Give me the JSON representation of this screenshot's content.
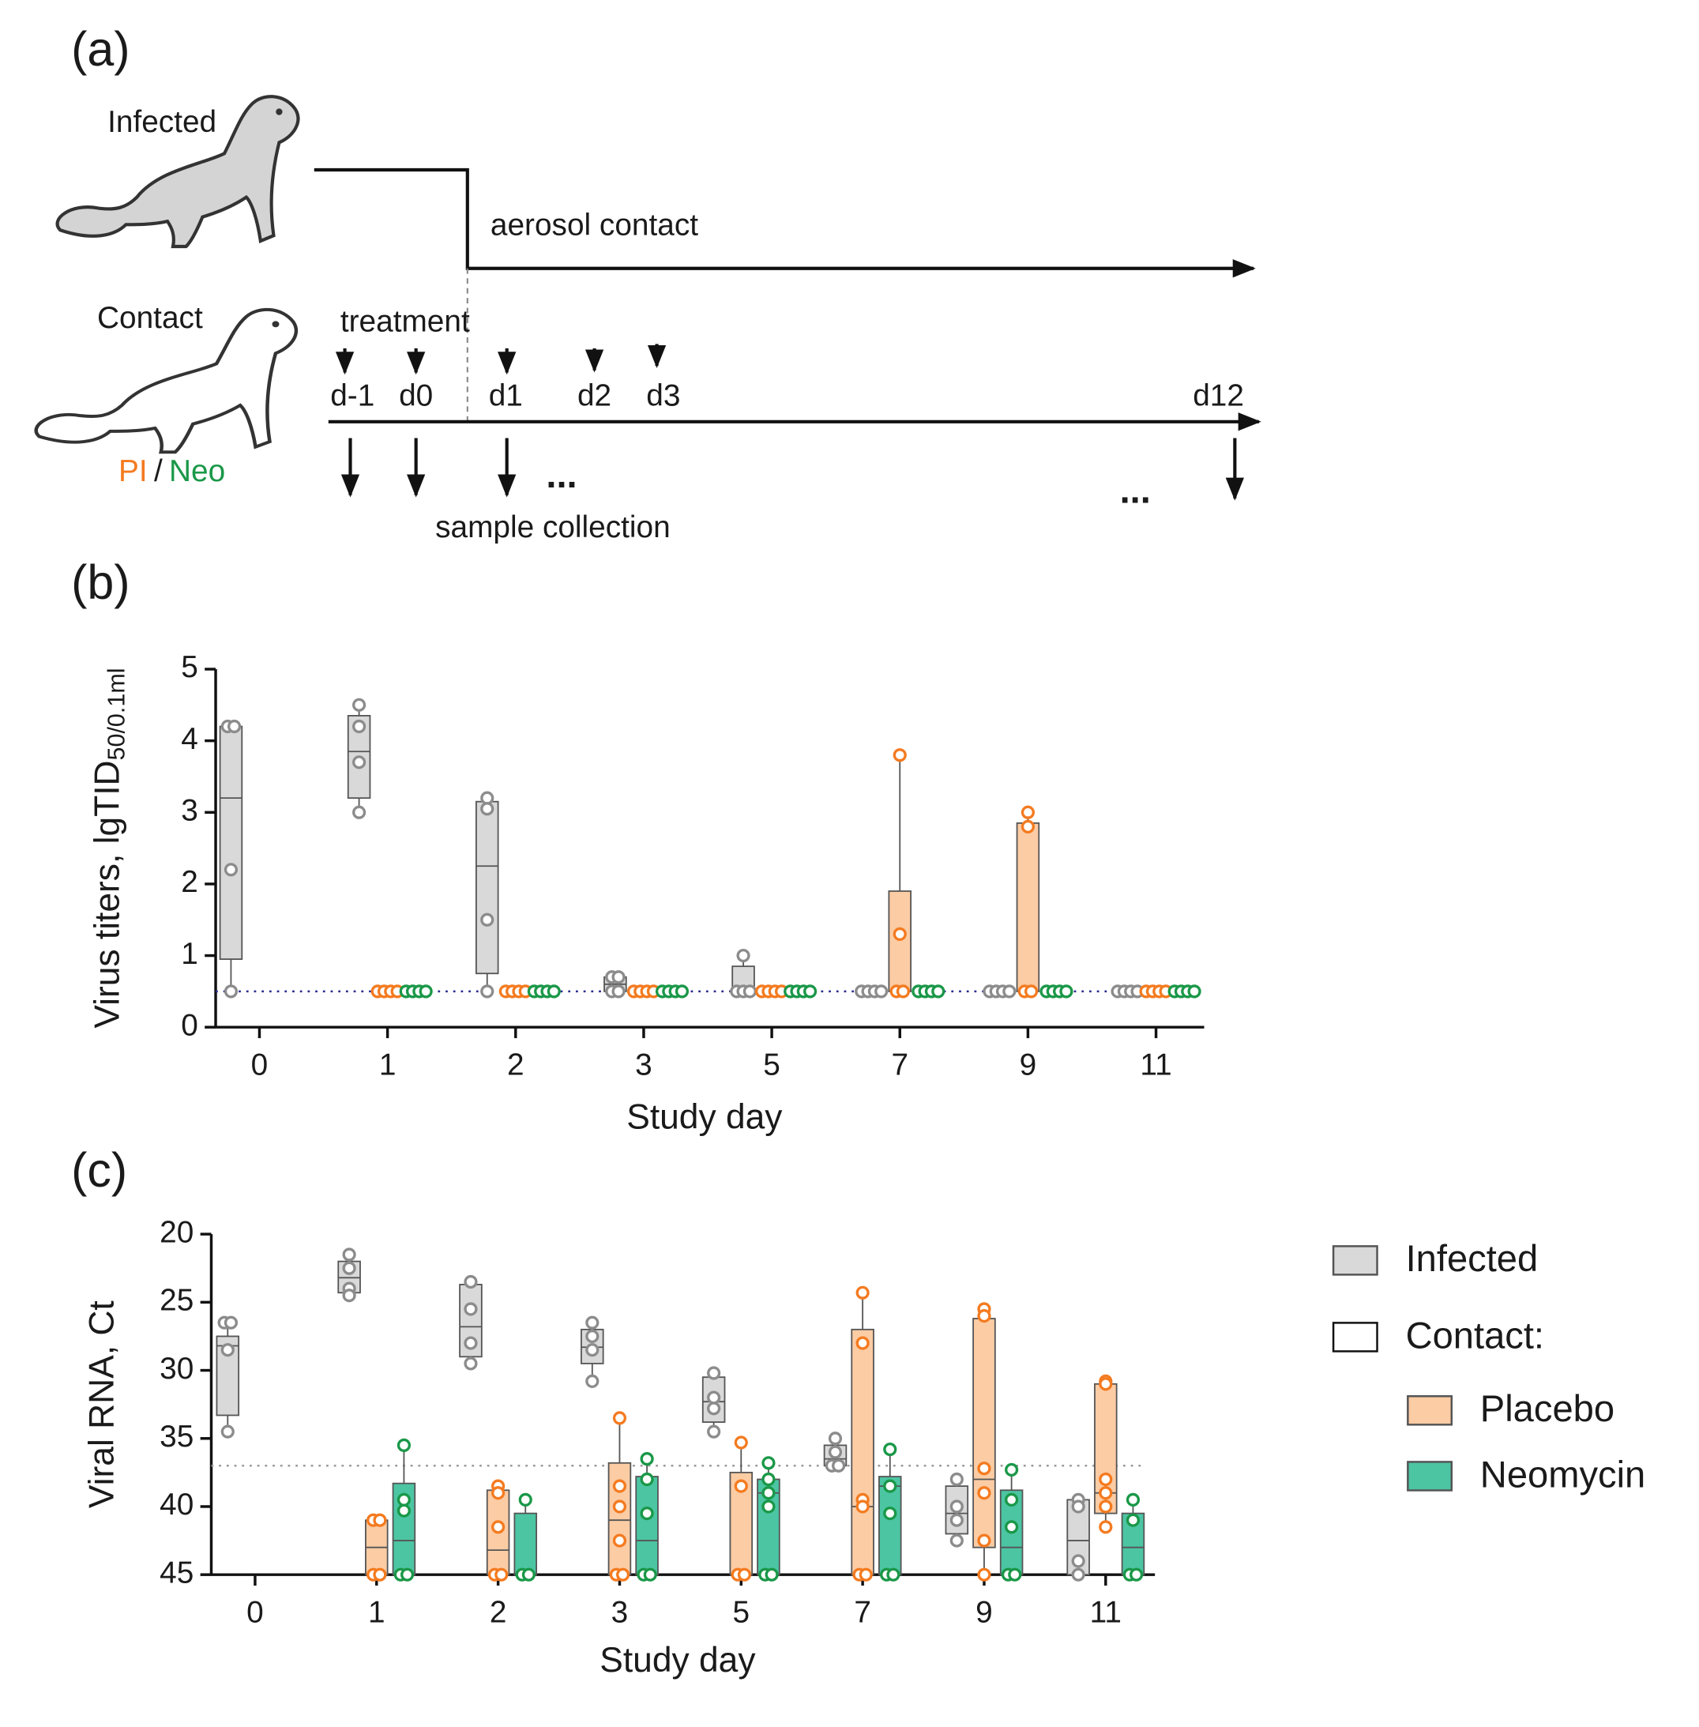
{
  "panel_labels": [
    "(a)",
    "(b)",
    "(c)"
  ],
  "diagram": {
    "infected": "Infected",
    "contact": "Contact",
    "aerosol": "aerosol contact",
    "treatment": "treatment",
    "days": [
      "d-1",
      "d0",
      "d1",
      "d2",
      "d3",
      "d12"
    ],
    "pi": "PI",
    "slash": "/",
    "neo": "Neo",
    "sample": "sample collection",
    "ellipsis": [
      "...",
      "..."
    ]
  },
  "chart_data": [
    {
      "type": "box",
      "categories": [
        "0",
        "1",
        "2",
        "3",
        "5",
        "7",
        "9",
        "11"
      ],
      "xlabel": "Study day",
      "ylabel": "Virus titers, lgTID",
      "ylabel_sub": "50/0.1ml",
      "ylim": [
        0,
        5
      ],
      "yticks": [
        0,
        1,
        2,
        3,
        4,
        5
      ],
      "hline": 0.5,
      "hline_color": "#2b2b8f",
      "series": [
        {
          "color": "#8c8c8c",
          "fill": "#d9d9d9",
          "boxes": [
            [
              0.5,
              0.95,
              3.2,
              4.2,
              4.2
            ],
            [
              3.0,
              3.2,
              3.85,
              4.35,
              4.5
            ],
            [
              0.5,
              0.75,
              2.25,
              3.15,
              3.2
            ],
            [
              0.5,
              0.5,
              0.6,
              0.7,
              0.7
            ],
            [
              0.5,
              0.5,
              0.5,
              0.85,
              1.0
            ],
            [
              0.5,
              0.5,
              0.5,
              0.5,
              0.5
            ],
            [
              0.5,
              0.5,
              0.5,
              0.5,
              0.5
            ],
            [
              0.5,
              0.5,
              0.5,
              0.5,
              0.5
            ]
          ],
          "points": [
            [
              4.2,
              4.2,
              2.2,
              0.5
            ],
            [
              4.5,
              4.2,
              3.7,
              3.0
            ],
            [
              3.2,
              3.05,
              1.5,
              0.5
            ],
            [
              0.7,
              0.7,
              0.5,
              0.5
            ],
            [
              1.0,
              0.5,
              0.5,
              0.5
            ],
            [
              0.5,
              0.5,
              0.5,
              0.5
            ],
            [
              0.5,
              0.5,
              0.5,
              0.5
            ],
            [
              0.5,
              0.5,
              0.5,
              0.5
            ]
          ]
        },
        {
          "color": "#f47b20",
          "fill": "#fccca4",
          "boxes": [
            null,
            [
              0.5,
              0.5,
              0.5,
              0.5,
              0.5
            ],
            [
              0.5,
              0.5,
              0.5,
              0.5,
              0.5
            ],
            [
              0.5,
              0.5,
              0.5,
              0.5,
              0.5
            ],
            [
              0.5,
              0.5,
              0.5,
              0.5,
              0.5
            ],
            [
              0.5,
              0.5,
              0.5,
              1.9,
              3.8
            ],
            [
              0.5,
              0.5,
              0.5,
              2.85,
              3.0
            ],
            [
              0.5,
              0.5,
              0.5,
              0.5,
              0.5
            ]
          ],
          "points": [
            null,
            [
              0.5,
              0.5,
              0.5,
              0.5
            ],
            [
              0.5,
              0.5,
              0.5,
              0.5
            ],
            [
              0.5,
              0.5,
              0.5,
              0.5
            ],
            [
              0.5,
              0.5,
              0.5,
              0.5
            ],
            [
              3.8,
              1.3,
              0.5,
              0.5
            ],
            [
              3.0,
              2.8,
              0.5,
              0.5
            ],
            [
              0.5,
              0.5,
              0.5,
              0.5
            ]
          ]
        },
        {
          "color": "#1a9848",
          "fill": "#4cc5a3",
          "boxes": [
            null,
            [
              0.5,
              0.5,
              0.5,
              0.5,
              0.5
            ],
            [
              0.5,
              0.5,
              0.5,
              0.5,
              0.5
            ],
            [
              0.5,
              0.5,
              0.5,
              0.5,
              0.5
            ],
            [
              0.5,
              0.5,
              0.5,
              0.5,
              0.5
            ],
            [
              0.5,
              0.5,
              0.5,
              0.5,
              0.5
            ],
            [
              0.5,
              0.5,
              0.5,
              0.5,
              0.5
            ],
            [
              0.5,
              0.5,
              0.5,
              0.5,
              0.5
            ]
          ],
          "points": [
            null,
            [
              0.5,
              0.5,
              0.5,
              0.5
            ],
            [
              0.5,
              0.5,
              0.5,
              0.5
            ],
            [
              0.5,
              0.5,
              0.5,
              0.5
            ],
            [
              0.5,
              0.5,
              0.5,
              0.5
            ],
            [
              0.5,
              0.5,
              0.5,
              0.5
            ],
            [
              0.5,
              0.5,
              0.5,
              0.5
            ],
            [
              0.5,
              0.5,
              0.5,
              0.5
            ]
          ]
        }
      ]
    },
    {
      "type": "box",
      "categories": [
        "0",
        "1",
        "2",
        "3",
        "5",
        "7",
        "9",
        "11"
      ],
      "xlabel": "Study day",
      "ylabel": "Viral RNA, Ct",
      "ylim": [
        20,
        45
      ],
      "y_reversed": true,
      "yticks": [
        20,
        25,
        30,
        35,
        40,
        45
      ],
      "hline": 37,
      "hline_color": "#999999",
      "legend_heading": "Contact:",
      "series": [
        {
          "name": "Infected",
          "color": "#8c8c8c",
          "fill": "#d9d9d9",
          "boxes": [
            [
              26.5,
              27.5,
              28.2,
              33.3,
              34.5
            ],
            [
              21.5,
              22,
              23.2,
              24.3,
              24.5
            ],
            [
              23.5,
              23.7,
              26.8,
              29,
              29.5
            ],
            [
              26.5,
              27,
              28.3,
              29.5,
              30.8
            ],
            [
              30.2,
              30.5,
              32.3,
              33.8,
              34.5
            ],
            [
              35,
              35.5,
              36.5,
              37,
              37
            ],
            [
              38,
              38.5,
              40.5,
              42,
              42.5
            ],
            [
              39.5,
              39.5,
              42.5,
              45,
              45
            ]
          ],
          "points": [
            [
              26.5,
              26.5,
              28.5,
              34.5
            ],
            [
              21.5,
              22.5,
              24,
              24.5
            ],
            [
              23.5,
              25.5,
              28,
              29.5
            ],
            [
              26.5,
              27.5,
              28.5,
              30.8
            ],
            [
              30.2,
              32,
              32.8,
              34.5
            ],
            [
              35,
              36,
              37,
              37
            ],
            [
              38,
              40,
              41,
              42.5
            ],
            [
              39.5,
              40,
              44,
              45
            ]
          ]
        },
        {
          "name": "Placebo",
          "color": "#f47b20",
          "fill": "#fccca4",
          "boxes": [
            null,
            [
              41,
              41,
              43,
              45,
              45
            ],
            [
              38.5,
              38.8,
              43.2,
              45,
              45
            ],
            [
              33.5,
              36.8,
              41,
              45,
              45
            ],
            [
              35.3,
              37.5,
              45,
              45,
              45
            ],
            [
              24.3,
              27,
              40,
              45,
              45
            ],
            [
              25.5,
              26.2,
              38,
              43,
              45
            ],
            [
              30.8,
              31,
              39,
              40.5,
              41.5
            ]
          ],
          "points": [
            null,
            [
              41,
              41,
              45,
              45
            ],
            [
              38.5,
              39,
              41.5,
              45,
              45
            ],
            [
              33.5,
              38.5,
              40,
              42.5,
              45,
              45
            ],
            [
              35.3,
              38.5,
              45,
              45
            ],
            [
              24.3,
              28,
              39.5,
              40,
              45,
              45
            ],
            [
              25.5,
              26,
              37.2,
              39,
              42.5,
              45
            ],
            [
              30.8,
              31,
              38,
              39,
              40,
              41.5
            ]
          ]
        },
        {
          "name": "Neomycin",
          "color": "#1a9848",
          "fill": "#4cc5a3",
          "boxes": [
            null,
            [
              35.5,
              38.3,
              42.5,
              45,
              45
            ],
            [
              39.5,
              40.5,
              45,
              45,
              45
            ],
            [
              36.5,
              37.8,
              42.5,
              45,
              45
            ],
            [
              36.8,
              38,
              39,
              45,
              45
            ],
            [
              35.8,
              37.8,
              38.5,
              45,
              45
            ],
            [
              37.3,
              38.8,
              43,
              45,
              45
            ],
            [
              39.5,
              40.5,
              43,
              45,
              45
            ]
          ],
          "points": [
            null,
            [
              35.5,
              39.5,
              40.3,
              45,
              45
            ],
            [
              39.5,
              45,
              45
            ],
            [
              36.5,
              38,
              40.5,
              45,
              45
            ],
            [
              36.8,
              38,
              39,
              40,
              45,
              45
            ],
            [
              35.8,
              38.5,
              40.5,
              45,
              45
            ],
            [
              37.3,
              39.5,
              41.5,
              45,
              45
            ],
            [
              39.5,
              41,
              45,
              45
            ]
          ]
        }
      ]
    }
  ]
}
